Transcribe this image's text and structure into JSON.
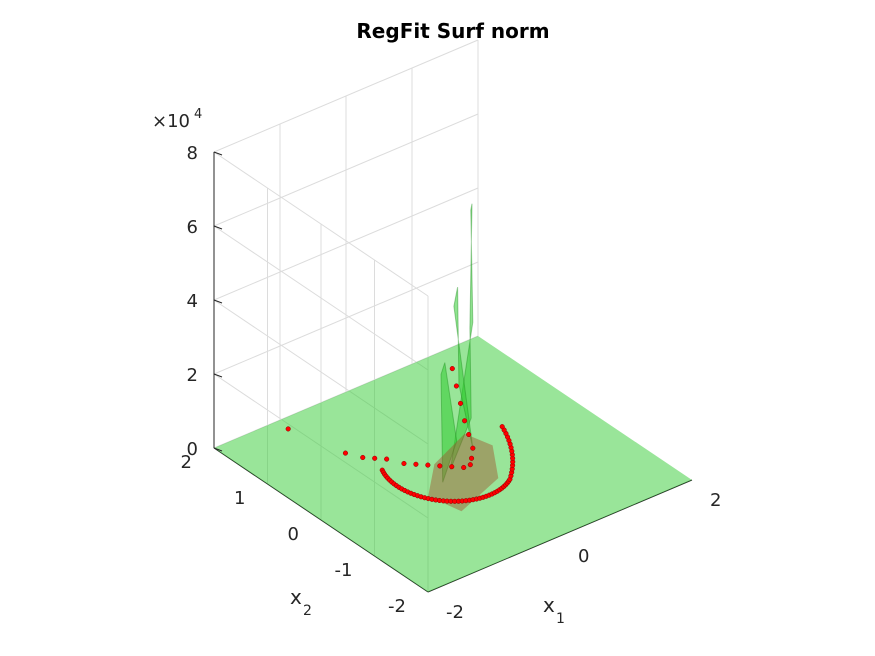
{
  "chart_data": {
    "type": "surface",
    "title": "RegFit Surf norm",
    "xlabel": "x",
    "xlabel_sub": "1",
    "ylabel": "x",
    "ylabel_sub": "2",
    "zlabel": "",
    "z_exponent_prefix": "×10",
    "z_exponent": "4",
    "xlim": [
      -2,
      2
    ],
    "ylim": [
      -2,
      2
    ],
    "zlim": [
      0,
      8
    ],
    "x_ticks": [
      "-2",
      "0",
      "2"
    ],
    "y_ticks": [
      "-2",
      "-1",
      "0",
      "1",
      "2"
    ],
    "z_ticks": [
      "0",
      "2",
      "4",
      "6",
      "8"
    ],
    "grid": true,
    "colors": {
      "surface": "#33cc33",
      "surface_edge": "#1a8a1a",
      "points": "#ff0000",
      "points_edge": "#8b0000"
    },
    "series": [
      {
        "type": "surface",
        "description_peak_z": 6.5,
        "plane_z": 0
      },
      {
        "type": "scatter3",
        "points": [
          [
            -1.2,
            1.6,
            0.3
          ],
          [
            -0.9,
            0.9,
            0.1
          ],
          [
            -0.8,
            0.7,
            0.1
          ],
          [
            -0.7,
            0.6,
            0.1
          ],
          [
            -0.6,
            0.5,
            0.1
          ],
          [
            -0.5,
            0.3,
            0.1
          ],
          [
            -0.4,
            0.2,
            0.1
          ],
          [
            -0.3,
            0.1,
            0.1
          ],
          [
            -0.2,
            0.0,
            0.1
          ],
          [
            -0.1,
            -0.1,
            0.1
          ],
          [
            0.0,
            -0.2,
            0.1
          ],
          [
            0.1,
            -0.2,
            0.1
          ],
          [
            0.2,
            -0.1,
            0.1
          ],
          [
            0.3,
            0.0,
            0.2
          ],
          [
            0.4,
            0.2,
            0.3
          ],
          [
            0.5,
            0.4,
            0.4
          ],
          [
            0.6,
            0.6,
            0.6
          ],
          [
            0.7,
            0.8,
            0.8
          ],
          [
            0.8,
            1.0,
            1.0
          ]
        ]
      }
    ]
  }
}
